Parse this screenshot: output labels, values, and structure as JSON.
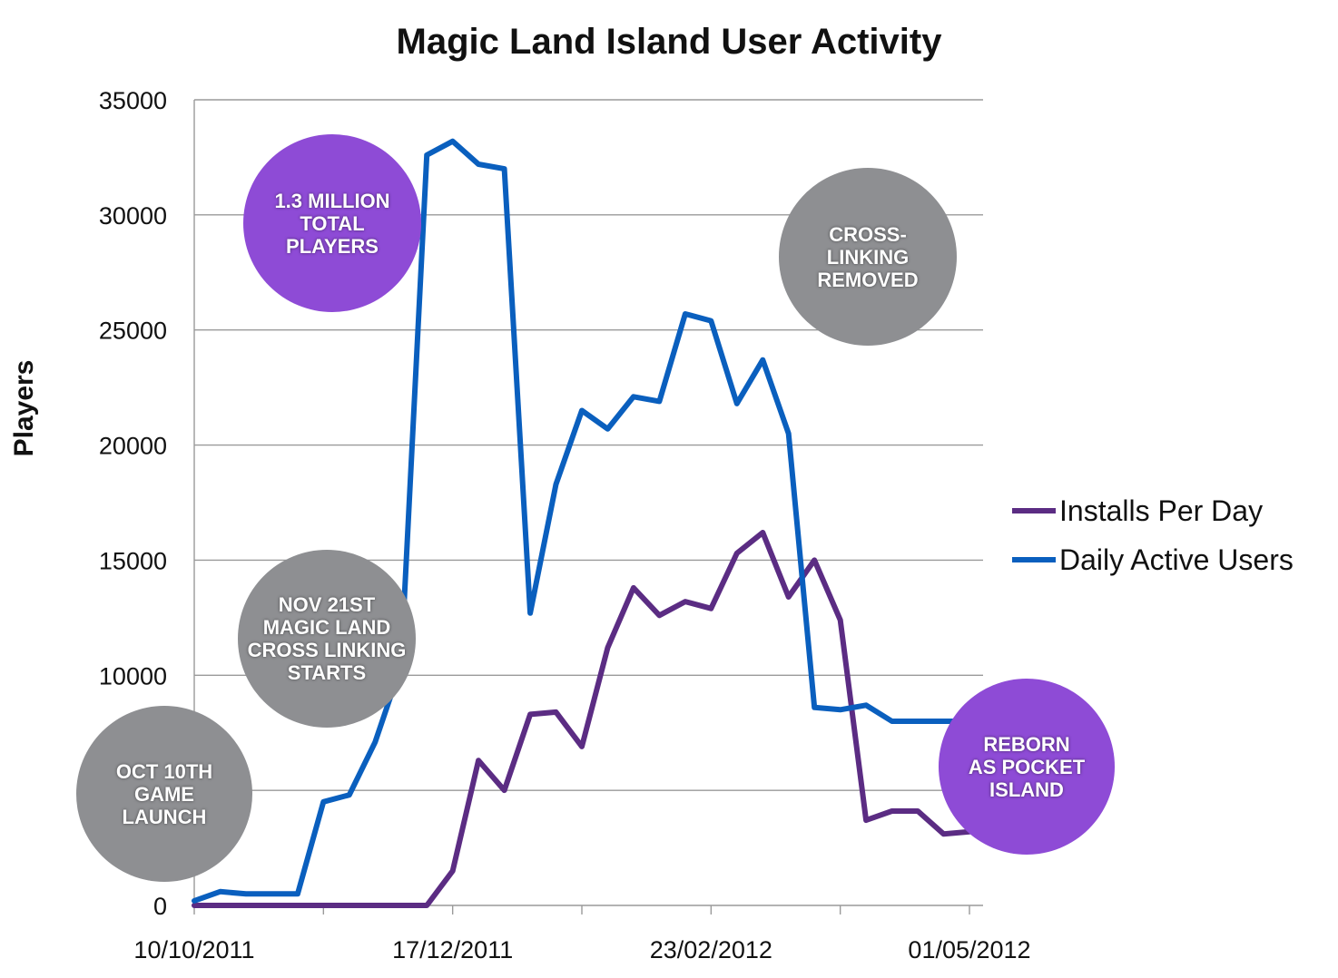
{
  "chart_data": {
    "type": "line",
    "title": "Magic Land Island User Activity",
    "ylabel": "Players",
    "xlabel": "",
    "ylim": [
      0,
      35000
    ],
    "yticks": [
      0,
      5000,
      10000,
      15000,
      20000,
      25000,
      30000,
      35000
    ],
    "ytick_labels": [
      "0",
      "",
      "10000",
      "15000",
      "20000",
      "25000",
      "30000",
      "35000"
    ],
    "x_tick_labels": [
      "10/10/2011",
      "17/12/2011",
      "23/02/2012",
      "01/05/2012"
    ],
    "x_tick_label_positions": [
      0,
      10,
      20,
      30
    ],
    "x_count": 31,
    "grid": true,
    "legend_position": "right",
    "series": [
      {
        "name": "Installs Per Day",
        "color": "#5b2c83",
        "values": [
          0,
          0,
          0,
          0,
          0,
          0,
          0,
          0,
          0,
          0,
          1500,
          6300,
          5000,
          8300,
          8400,
          6900,
          11200,
          13800,
          12600,
          13200,
          12900,
          15300,
          16200,
          13400,
          15000,
          12400,
          3700,
          4100,
          4100,
          3100,
          3200
        ]
      },
      {
        "name": "Daily Active Users",
        "color": "#0a5fbe",
        "values": [
          200,
          600,
          500,
          500,
          500,
          4500,
          4800,
          7100,
          10400,
          32600,
          33200,
          32200,
          32000,
          12700,
          18300,
          21500,
          20700,
          22100,
          21900,
          25700,
          25400,
          21800,
          23700,
          20500,
          8600,
          8500,
          8700,
          8000,
          8000,
          8000,
          8000
        ]
      }
    ]
  },
  "annotations": [
    {
      "id": "launch",
      "text": "OCT 10th\nGAME\nLAUNCH",
      "color": "#8e8f92"
    },
    {
      "id": "crosslink",
      "text": "NOV 21st\nMAGIC LAND\nCROSS LINKING\nSTARTS",
      "color": "#8e8f92"
    },
    {
      "id": "total",
      "text": "1.3 MILLION\nTOTAL\nPLAYERS",
      "color": "#8e4bd6"
    },
    {
      "id": "removed",
      "text": "CROSS-\nLINKING\nREMOVED",
      "color": "#8e8f92"
    },
    {
      "id": "reborn",
      "text": "REBORN\nAS POCKET\nISLAND",
      "color": "#8e4bd6"
    }
  ]
}
